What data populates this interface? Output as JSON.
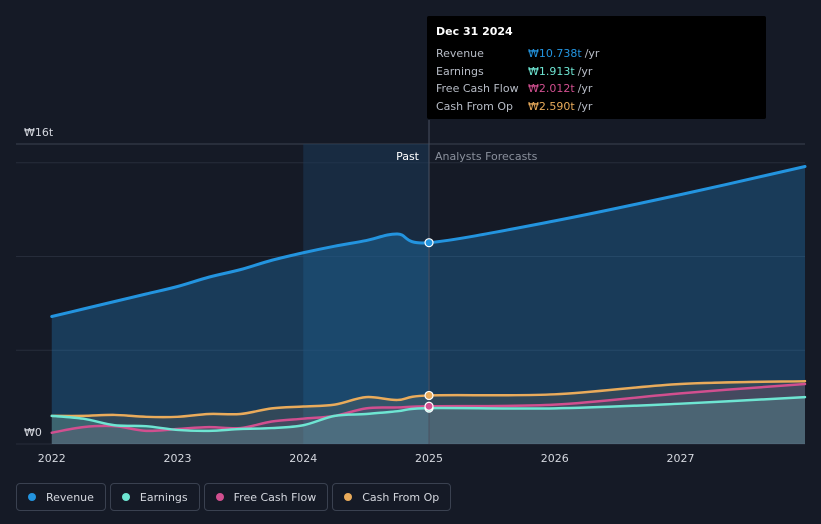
{
  "colors": {
    "revenue": "#2394df",
    "earnings": "#6ee5d2",
    "fcf": "#d14f8f",
    "cfo": "#e9ab5b",
    "past_band": "#1c3a57"
  },
  "tooltip": {
    "date": "Dec 31 2024",
    "rows": [
      {
        "name": "Revenue",
        "value": "₩10.738t",
        "unit": "/yr"
      },
      {
        "name": "Earnings",
        "value": "₩1.913t",
        "unit": "/yr"
      },
      {
        "name": "Free Cash Flow",
        "value": "₩2.012t",
        "unit": "/yr"
      },
      {
        "name": "Cash From Op",
        "value": "₩2.590t",
        "unit": "/yr"
      }
    ]
  },
  "labels": {
    "past": "Past",
    "forecast": "Analysts Forecasts",
    "y_top": "₩16t",
    "y_bottom": "₩0"
  },
  "legend": [
    {
      "name": "Revenue",
      "key": "revenue"
    },
    {
      "name": "Earnings",
      "key": "earnings"
    },
    {
      "name": "Free Cash Flow",
      "key": "fcf"
    },
    {
      "name": "Cash From Op",
      "key": "cfo"
    }
  ],
  "chart_data": {
    "type": "line",
    "title": "",
    "xlabel": "",
    "ylabel": "",
    "ylim": [
      0,
      16
    ],
    "xlim": [
      2021.97,
      2027.99
    ],
    "x_ticks": [
      2022,
      2023,
      2024,
      2025,
      2026,
      2027
    ],
    "divider_x": 2025.0,
    "past_band_start": 2024.0,
    "y_gridlines": [
      0,
      5,
      10,
      15,
      16
    ],
    "series": [
      {
        "name": "Revenue",
        "key": "revenue",
        "unit": "₩t",
        "x": [
          2022.0,
          2022.25,
          2022.5,
          2022.75,
          2023.0,
          2023.25,
          2023.5,
          2023.75,
          2024.0,
          2024.25,
          2024.5,
          2024.75,
          2025.0,
          2026.0,
          2027.0,
          2027.99
        ],
        "values": [
          6.8,
          7.2,
          7.6,
          8.0,
          8.4,
          8.9,
          9.3,
          9.8,
          10.2,
          10.55,
          10.85,
          11.2,
          10.738,
          11.9,
          13.3,
          14.8
        ]
      },
      {
        "name": "Earnings",
        "key": "earnings",
        "unit": "₩t",
        "x": [
          2022.0,
          2022.25,
          2022.5,
          2022.75,
          2023.0,
          2023.25,
          2023.5,
          2023.75,
          2024.0,
          2024.25,
          2024.5,
          2024.75,
          2025.0,
          2026.0,
          2027.0,
          2027.99
        ],
        "values": [
          1.5,
          1.35,
          1.0,
          0.95,
          0.75,
          0.7,
          0.8,
          0.85,
          1.0,
          1.5,
          1.6,
          1.75,
          1.913,
          1.9,
          2.15,
          2.5
        ]
      },
      {
        "name": "Free Cash Flow",
        "key": "fcf",
        "unit": "₩t",
        "x": [
          2022.0,
          2022.25,
          2022.5,
          2022.75,
          2023.0,
          2023.25,
          2023.5,
          2023.75,
          2024.0,
          2024.25,
          2024.5,
          2024.75,
          2025.0,
          2026.0,
          2027.0,
          2027.99
        ],
        "values": [
          0.6,
          0.9,
          0.95,
          0.7,
          0.8,
          0.9,
          0.85,
          1.2,
          1.35,
          1.5,
          1.9,
          1.95,
          2.012,
          2.1,
          2.7,
          3.2
        ]
      },
      {
        "name": "Cash From Op",
        "key": "cfo",
        "unit": "₩t",
        "x": [
          2022.0,
          2022.25,
          2022.5,
          2022.75,
          2023.0,
          2023.25,
          2023.5,
          2023.75,
          2024.0,
          2024.25,
          2024.5,
          2024.75,
          2025.0,
          2026.0,
          2027.0,
          2027.99
        ],
        "values": [
          1.5,
          1.5,
          1.55,
          1.45,
          1.45,
          1.6,
          1.6,
          1.9,
          2.0,
          2.1,
          2.5,
          2.35,
          2.59,
          2.65,
          3.2,
          3.35
        ]
      }
    ]
  }
}
